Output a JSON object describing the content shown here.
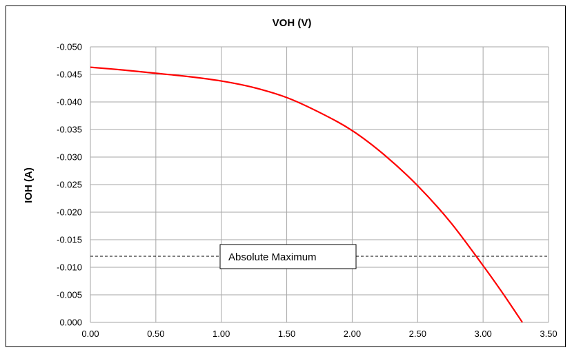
{
  "chart_data": {
    "type": "line",
    "title": "VOH (V)",
    "xlabel": "",
    "ylabel": "IOH (A)",
    "xlim": [
      0.0,
      3.5
    ],
    "ylim": [
      0.0,
      -0.05
    ],
    "y_axis_inverted": true,
    "grid": true,
    "x_ticks": [
      "0.00",
      "0.50",
      "1.00",
      "1.50",
      "2.00",
      "2.50",
      "3.00",
      "3.50"
    ],
    "y_ticks": [
      "0.000",
      "-0.005",
      "-0.010",
      "-0.015",
      "-0.020",
      "-0.025",
      "-0.030",
      "-0.035",
      "-0.040",
      "-0.045",
      "-0.050"
    ],
    "series": [
      {
        "color": "#ff0000",
        "x": [
          0.0,
          0.25,
          0.5,
          0.75,
          1.0,
          1.25,
          1.5,
          1.75,
          2.0,
          2.25,
          2.5,
          2.75,
          3.0,
          3.15,
          3.3
        ],
        "y": [
          -0.0463,
          -0.0458,
          -0.0452,
          -0.0446,
          -0.0438,
          -0.0426,
          -0.0408,
          -0.0381,
          -0.0348,
          -0.0303,
          -0.0248,
          -0.0182,
          -0.0103,
          -0.0053,
          0.0
        ]
      }
    ],
    "reference_line": {
      "y": -0.012,
      "label": "Absolute Maximum",
      "style": "dashed",
      "color": "#000000"
    }
  }
}
